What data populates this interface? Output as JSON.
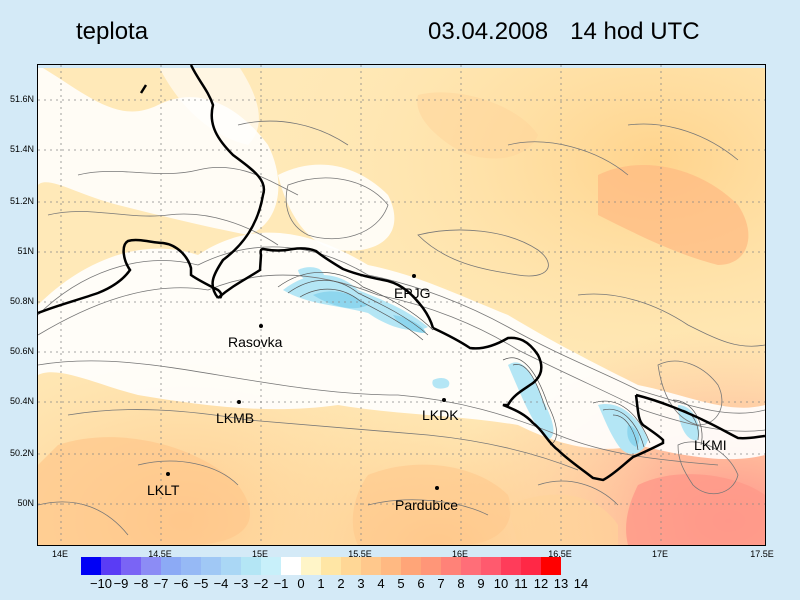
{
  "header": {
    "variable": "teplota",
    "date": "03.04.2008",
    "time": "14 hod UTC"
  },
  "axes": {
    "lat_labels": [
      "51.6N",
      "51.4N",
      "51.2N",
      "51N",
      "50.8N",
      "50.6N",
      "50.4N",
      "50.2N",
      "50N"
    ],
    "lon_labels": [
      "14E",
      "14.5E",
      "15E",
      "15.5E",
      "16E",
      "16.5E",
      "17E",
      "17.5E"
    ]
  },
  "stations": [
    {
      "name": "EPJG",
      "lon": 15.78,
      "lat": 50.9
    },
    {
      "name": "Rasovka",
      "lon": 15.0,
      "lat": 50.7
    },
    {
      "name": "LKMB",
      "lon": 14.89,
      "lat": 50.41
    },
    {
      "name": "LKDK",
      "lon": 15.92,
      "lat": 50.42
    },
    {
      "name": "LKMI",
      "lon": 17.4,
      "lat": 50.27
    },
    {
      "name": "LKLT",
      "lon": 14.53,
      "lat": 50.12
    },
    {
      "name": "Pardubice",
      "lon": 15.88,
      "lat": 50.07
    }
  ],
  "colorbar": {
    "labels": [
      "−10",
      "−9",
      "−8",
      "−7",
      "−6",
      "−5",
      "−4",
      "−3",
      "−2",
      "−1",
      "0",
      "1",
      "2",
      "3",
      "4",
      "5",
      "6",
      "7",
      "8",
      "9",
      "10",
      "11",
      "12",
      "13",
      "14"
    ],
    "colors": [
      "#0000f5",
      "#5a3cf5",
      "#7a64f5",
      "#8c8cf5",
      "#8caaf5",
      "#96b9f5",
      "#a0c8f5",
      "#aad7f5",
      "#b4e6f5",
      "#c8f0fa",
      "#ffffff",
      "#fff5c8",
      "#ffe6a5",
      "#ffd796",
      "#ffc88c",
      "#ffb982",
      "#ffa578",
      "#ff9678",
      "#ff8278",
      "#ff6e78",
      "#ff5a6e",
      "#ff3c5a",
      "#ff2846",
      "#ff0000"
    ]
  }
}
